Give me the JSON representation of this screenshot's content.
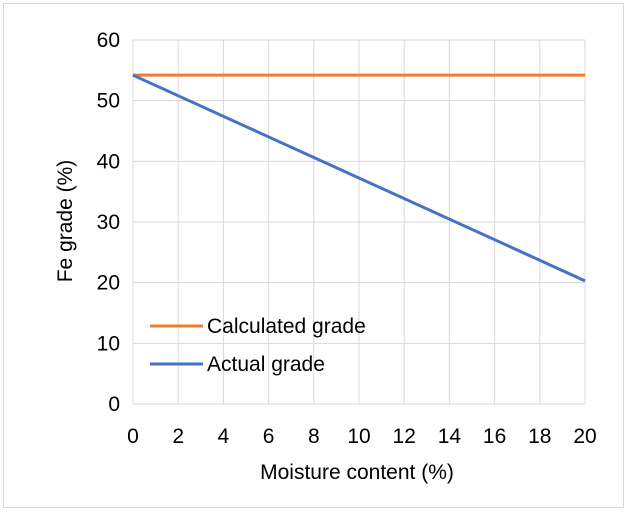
{
  "chart_data": {
    "type": "line",
    "title": "",
    "xlabel": "Moisture content (%)",
    "ylabel": "Fe grade (%)",
    "xlim": [
      0,
      20
    ],
    "ylim": [
      0,
      60
    ],
    "x_ticks": [
      0,
      2,
      4,
      6,
      8,
      10,
      12,
      14,
      16,
      18,
      20
    ],
    "y_ticks": [
      0,
      10,
      20,
      30,
      40,
      50,
      60
    ],
    "grid": true,
    "legend_placement": "bottom-left",
    "series": [
      {
        "name": "Calculated grade",
        "color": "#ed7d31",
        "x": [
          0,
          20
        ],
        "y": [
          54.2,
          54.2
        ]
      },
      {
        "name": "Actual grade",
        "color": "#4472c4",
        "x": [
          0,
          20
        ],
        "y": [
          54.2,
          20.3
        ]
      }
    ]
  }
}
